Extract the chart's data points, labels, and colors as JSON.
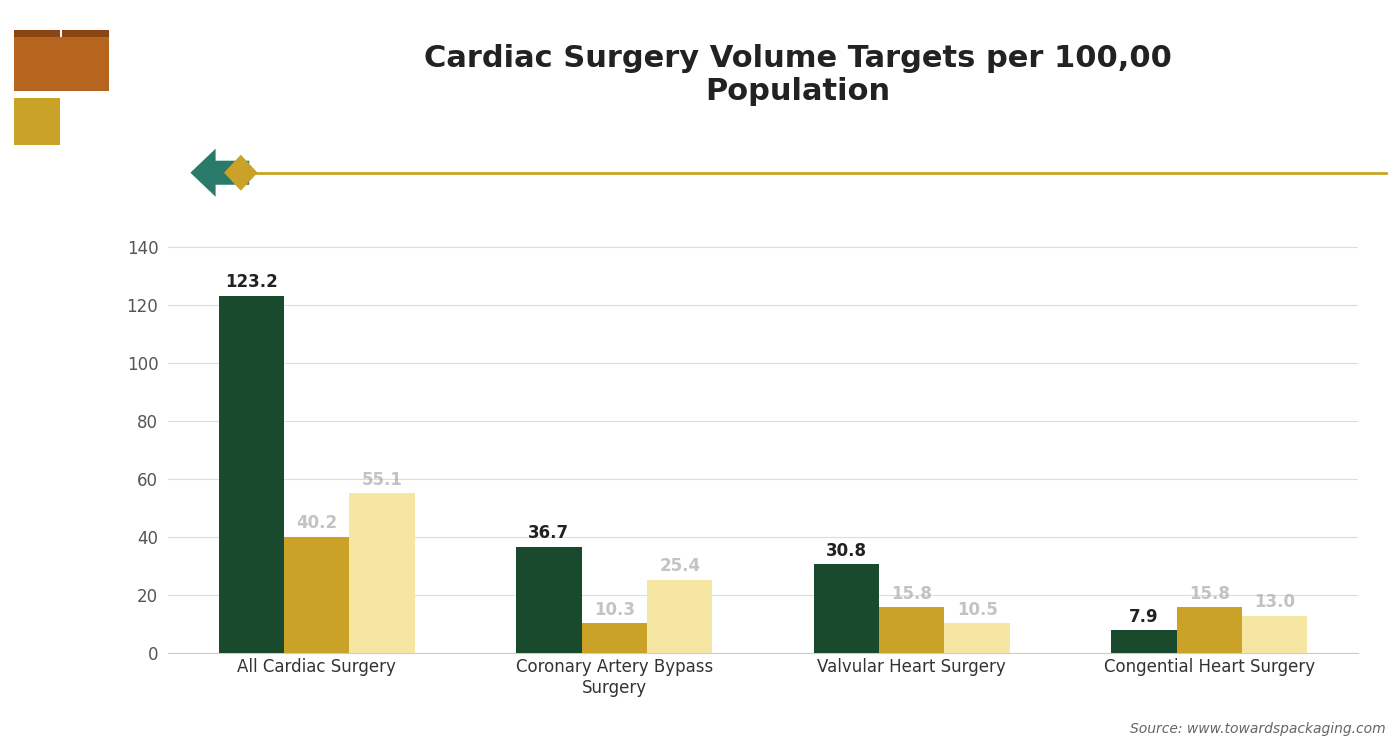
{
  "title": "Cardiac Surgery Volume Targets per 100,00\nPopulation",
  "categories": [
    "All Cardiac Surgery",
    "Coronary Artery Bypass\nSurgery",
    "Valvular Heart Surgery",
    "Congential Heart Surgery"
  ],
  "series": {
    "High Income Counteries": [
      123.2,
      36.7,
      30.8,
      7.9
    ],
    "Low Income Counteries": [
      40.2,
      10.3,
      15.8,
      15.8
    ],
    "Lower Middle Income Companies": [
      55.1,
      25.4,
      10.5,
      13.0
    ]
  },
  "colors": {
    "High Income Counteries": "#1a4a2e",
    "Low Income Counteries": "#c9a227",
    "Lower Middle Income Companies": "#f5e6a3"
  },
  "ylim": [
    0,
    150
  ],
  "yticks": [
    0,
    20,
    40,
    60,
    80,
    100,
    120,
    140
  ],
  "background_color": "#ffffff",
  "source_text": "Source: www.towardspackaging.com",
  "title_fontsize": 22,
  "label_fontsize": 12,
  "tick_fontsize": 12,
  "legend_fontsize": 12,
  "bar_width": 0.22,
  "deco_line_color": "#c9a227",
  "label_color_high": "#222222",
  "label_color_low": "#bbbbbb"
}
